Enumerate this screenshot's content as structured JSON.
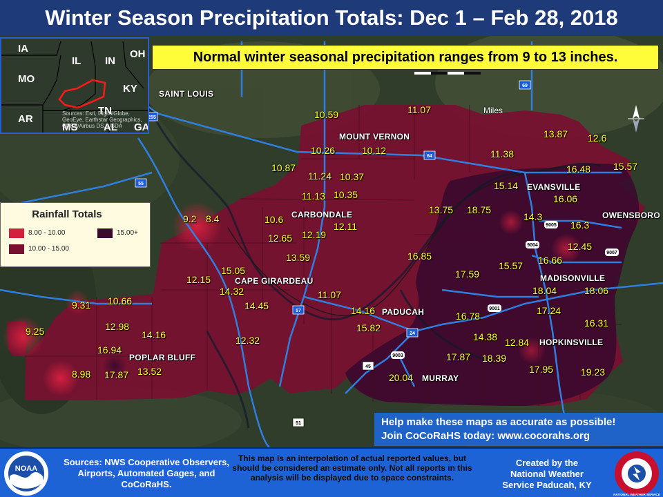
{
  "title": "Winter Season Precipitation Totals: Dec 1 – Feb 28, 2018",
  "normal_note": "Normal winter seasonal precipitation ranges from 9 to 13 inches.",
  "scale_label": "Miles",
  "inset": {
    "states": [
      "IA",
      "IL",
      "IN",
      "OH",
      "MO",
      "KY",
      "AR",
      "TN",
      "MS",
      "AL",
      "GA"
    ],
    "credit": "Sources: Esri, DigitalGlobe, GeoEye, Earthstar Geographics, CNES/Airbus DS, USDA"
  },
  "legend": {
    "title": "Rainfall Totals",
    "items": [
      {
        "label": "8.00 - 10.00",
        "color": "#d21f3c"
      },
      {
        "label": "10.00 - 15.00",
        "color": "#7a1030"
      },
      {
        "label": "15.00+",
        "color": "#3a0a2e"
      }
    ]
  },
  "cities": [
    "SAINT LOUIS",
    "MOUNT VERNON",
    "EVANSVILLE",
    "OWENSBORO",
    "CARBONDALE",
    "MADISONVILLE",
    "CAPE GIRARDEAU",
    "PADUCAH",
    "HOPKINSVILLE",
    "POPLAR BLUFF",
    "MURRAY"
  ],
  "highway_shields": [
    "255",
    "55",
    "64",
    "57",
    "24",
    "69",
    "9005",
    "9004",
    "9007",
    "9001",
    "9003",
    "45",
    "51"
  ],
  "values": [
    "10.59",
    "11.07",
    "13.87",
    "12.6",
    "10.26",
    "10.12",
    "11.38",
    "16.48",
    "15.57",
    "10.87",
    "11.24",
    "10.37",
    "15.14",
    "16.06",
    "11.13",
    "10.35",
    "9.2",
    "8.4",
    "10.6",
    "13.75",
    "18.75",
    "14.3",
    "16.3",
    "12.11",
    "12.65",
    "12.19",
    "12.45",
    "13.59",
    "16.85",
    "16.66",
    "15.57",
    "15.05",
    "17.59",
    "12.15",
    "14.32",
    "18.04",
    "18.06",
    "11.07",
    "9.31",
    "10.66",
    "14.45",
    "14.16",
    "17.24",
    "15.82",
    "16.78",
    "16.31",
    "9.25",
    "12.98",
    "14.16",
    "14.38",
    "12.84",
    "12.32",
    "16.94",
    "17.87",
    "18.39",
    "8.98",
    "17.87",
    "13.52",
    "17.95",
    "19.23",
    "20.04"
  ],
  "cocorahs": {
    "line1": "Help make these maps as accurate as possible!",
    "line2": "Join CoCoRaHS today: www.cocorahs.org"
  },
  "footer": {
    "sources": "Sources: NWS Cooperative Observers, Airports, Automated Gages, and CoCoRaHS.",
    "disclaimer": "This map is an interpolation of actual reported values, but should be considered an estimate only. Not all reports in this analysis will be displayed due to space constraints.",
    "created_by": "Created by the National Weather Service Paducah, KY",
    "noaa_logo_text": "NOAA",
    "nws_logo_text": "NATIONAL WEATHER SERVICE"
  }
}
